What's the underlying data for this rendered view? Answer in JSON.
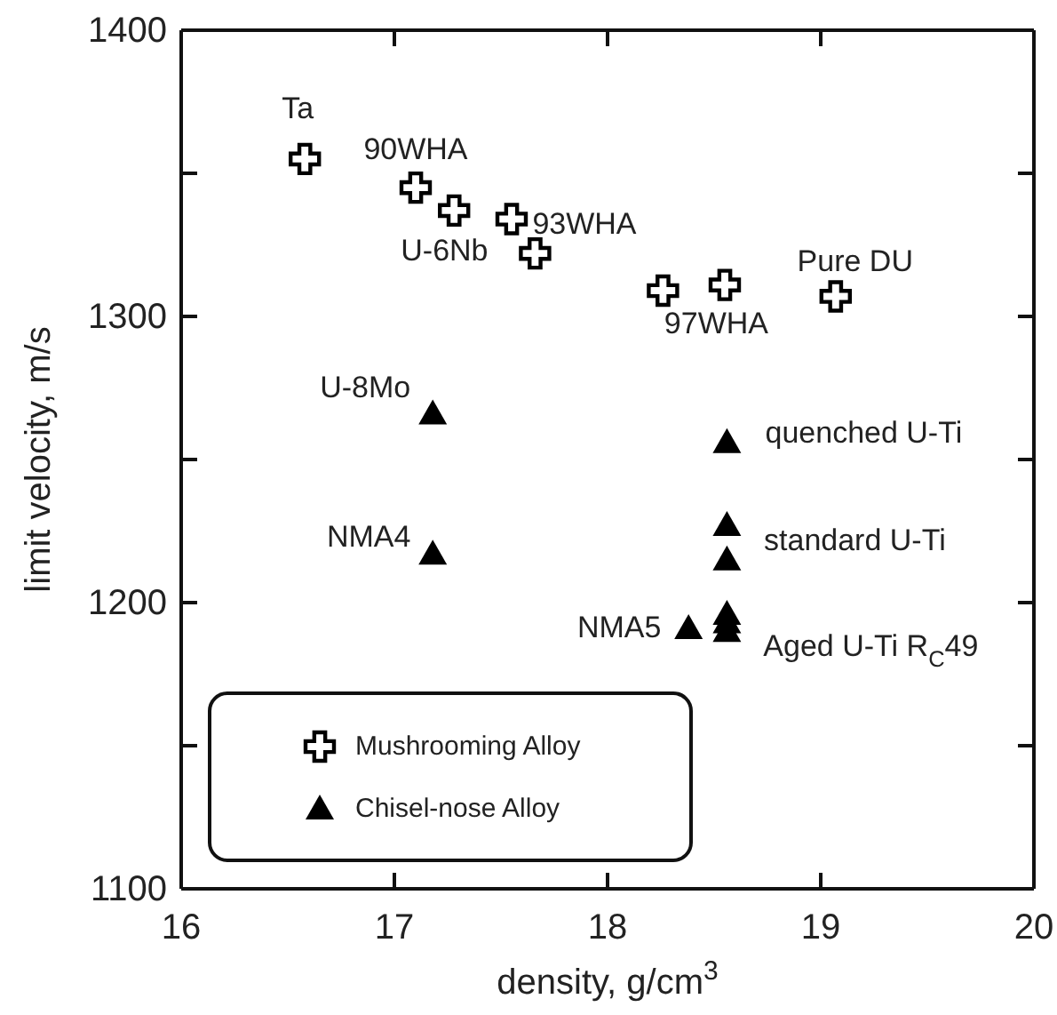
{
  "chart_data": {
    "type": "scatter",
    "xlabel": "density, g/cm$^{3}$",
    "ylabel": "limit velocity, m/s",
    "xlim": [
      16,
      20
    ],
    "xticks": [
      16,
      17,
      18,
      19,
      20
    ],
    "ylim": [
      1100,
      1400
    ],
    "yticks": [
      1100,
      {
        "value": 1150,
        "label": null
      },
      1200,
      {
        "value": 1250,
        "label": null
      },
      1300,
      {
        "value": 1350,
        "label": null
      },
      1400
    ],
    "grid": false,
    "legend": "bottom left",
    "series": [
      {
        "name": "Mushrooming Alloy",
        "color": "#000000",
        "marker": "cross",
        "x": [
          16.58,
          17.1,
          17.28,
          17.55,
          17.66,
          18.26,
          18.55,
          19.07
        ],
        "values": [
          1355,
          1345,
          1337,
          1334,
          1322,
          1309,
          1311,
          1307
        ]
      },
      {
        "name": "Chisel-nose Alloy",
        "color": "#000000",
        "marker": "triangle",
        "x": [
          17.18,
          18.56,
          18.56,
          18.56,
          17.18,
          18.38,
          18.56,
          18.56,
          18.56
        ],
        "values": [
          1266,
          1256,
          1227,
          1215,
          1217,
          1191,
          1196,
          1193,
          1190
        ]
      }
    ],
    "annotations": [
      {
        "text": "Ta",
        "x": 16.58,
        "y": 1355
      },
      {
        "text": "90WHA",
        "x": 17.1,
        "y": 1345
      },
      {
        "text": "U-6Nb",
        "x": 17.66,
        "y": 1322
      },
      {
        "text": "93WHA",
        "x": 17.55,
        "y": 1334
      },
      {
        "text": "97WHA",
        "x": 18.26,
        "y": 1309
      },
      {
        "text": "Pure DU",
        "x": 19.07,
        "y": 1307
      },
      {
        "text": "U-8Mo",
        "x": 17.18,
        "y": 1266
      },
      {
        "text": "quenched U-Ti",
        "x": 18.56,
        "y": 1256
      },
      {
        "text": "standard U-Ti",
        "x": 18.56,
        "y": 1227
      },
      {
        "text": "NMA4",
        "x": 17.18,
        "y": 1217
      },
      {
        "text": "NMA5",
        "x": 18.38,
        "y": 1191
      },
      {
        "text": "Aged U-Ti R$_{C}$49",
        "x": 18.56,
        "y": 1190
      }
    ]
  }
}
